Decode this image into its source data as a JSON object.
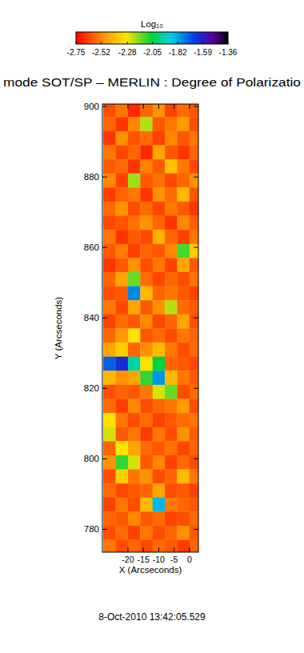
{
  "chart_data": {
    "type": "heatmap",
    "title": "mode SOT/SP – MERLIN : Degree of Polarizatio",
    "subtitle": "8-Oct-2010 13:42:05.529",
    "x_label": "X (Arcseconds)",
    "y_label": "Y (Arcseconds)",
    "x": [
      -26,
      -22,
      -18,
      -14,
      -10,
      -6,
      -2,
      2
    ],
    "y": [
      899,
      895,
      891,
      887,
      883,
      879,
      875,
      871,
      867,
      863,
      859,
      855,
      851,
      847,
      843,
      839,
      835,
      831,
      827,
      823,
      819,
      815,
      811,
      807,
      803,
      799,
      795,
      791,
      787,
      783,
      779,
      775
    ],
    "z": [
      [
        -2.62,
        -2.55,
        -2.68,
        -2.58,
        -2.5,
        -2.64,
        -2.57,
        -2.6
      ],
      [
        -2.58,
        -2.66,
        -2.52,
        -2.22,
        -2.6,
        -2.55,
        -2.48,
        -2.62
      ],
      [
        -2.66,
        -2.5,
        -2.61,
        -2.57,
        -2.64,
        -2.52,
        -2.6,
        -2.55
      ],
      [
        -2.55,
        -2.63,
        -2.58,
        -2.68,
        -2.45,
        -2.6,
        -2.66,
        -2.58
      ],
      [
        -2.6,
        -2.57,
        -2.66,
        -2.53,
        -2.6,
        -2.38,
        -2.55,
        -2.63
      ],
      [
        -2.52,
        -2.64,
        -2.2,
        -2.6,
        -2.56,
        -2.63,
        -2.58,
        -2.5
      ],
      [
        -2.65,
        -2.58,
        -2.55,
        -2.66,
        -2.5,
        -2.57,
        -2.4,
        -2.61
      ],
      [
        -2.57,
        -2.5,
        -2.62,
        -2.57,
        -2.63,
        -2.55,
        -2.6,
        -2.66
      ],
      [
        -2.63,
        -2.61,
        -2.56,
        -2.5,
        -2.58,
        -2.66,
        -2.52,
        -2.59
      ],
      [
        -2.55,
        -2.66,
        -2.6,
        -2.63,
        -2.42,
        -2.58,
        -2.64,
        -2.55
      ],
      [
        -2.6,
        -2.54,
        -2.64,
        -2.58,
        -2.6,
        -2.52,
        -2.12,
        -2.35
      ],
      [
        -2.66,
        -2.6,
        -2.5,
        -2.62,
        -2.55,
        -2.64,
        -2.45,
        -2.6
      ],
      [
        -2.58,
        -2.45,
        -2.15,
        -2.57,
        -2.63,
        -2.58,
        -2.62,
        -2.55
      ],
      [
        -2.62,
        -2.6,
        -1.78,
        -2.4,
        -2.58,
        -2.55,
        -2.6,
        -2.64
      ],
      [
        -2.55,
        -2.63,
        -2.45,
        -2.6,
        -2.5,
        -2.22,
        -2.57,
        -2.6
      ],
      [
        -2.64,
        -2.57,
        -2.6,
        -2.52,
        -2.63,
        -2.58,
        -2.45,
        -2.62
      ],
      [
        -2.58,
        -2.48,
        -2.3,
        -2.6,
        -2.57,
        -2.62,
        -2.55,
        -2.58
      ],
      [
        -2.45,
        -2.35,
        -2.58,
        -2.5,
        -2.4,
        -2.55,
        -2.62,
        -2.57
      ],
      [
        -1.72,
        -1.62,
        -1.95,
        -2.3,
        -2.05,
        -2.58,
        -2.6,
        -2.63
      ],
      [
        -2.4,
        -2.5,
        -2.45,
        -2.1,
        -1.8,
        -2.4,
        -2.55,
        -2.6
      ],
      [
        -2.62,
        -2.58,
        -2.6,
        -2.55,
        -2.25,
        -2.15,
        -2.62,
        -2.57
      ],
      [
        -2.57,
        -2.64,
        -2.52,
        -2.62,
        -2.58,
        -2.55,
        -2.48,
        -2.62
      ],
      [
        -2.3,
        -2.55,
        -2.62,
        -2.57,
        -2.64,
        -2.6,
        -2.57,
        -2.55
      ],
      [
        -2.25,
        -2.6,
        -2.55,
        -2.65,
        -2.55,
        -2.62,
        -2.5,
        -2.6
      ],
      [
        -2.58,
        -2.3,
        -2.45,
        -2.57,
        -2.6,
        -2.56,
        -2.63,
        -2.58
      ],
      [
        -2.5,
        -2.1,
        -2.25,
        -2.6,
        -2.52,
        -2.64,
        -2.57,
        -2.62
      ],
      [
        -2.62,
        -2.35,
        -2.55,
        -2.5,
        -2.62,
        -2.58,
        -2.4,
        -2.55
      ],
      [
        -2.57,
        -2.63,
        -2.6,
        -2.58,
        -2.45,
        -2.62,
        -2.6,
        -2.64
      ],
      [
        -2.64,
        -2.55,
        -2.62,
        -2.4,
        -1.85,
        -2.55,
        -2.58,
        -2.6
      ],
      [
        -2.58,
        -2.6,
        -2.52,
        -2.6,
        -2.57,
        -2.64,
        -2.62,
        -2.57
      ],
      [
        -2.62,
        -2.57,
        -2.64,
        -2.55,
        -2.62,
        -2.58,
        -2.5,
        -2.6
      ],
      [
        -2.55,
        -2.62,
        -2.58,
        -2.63,
        -2.57,
        -2.6,
        -2.65,
        -2.58
      ]
    ],
    "xlim": [
      -28.3,
      2.9
    ],
    "ylim": [
      773.5,
      900.7
    ],
    "xticks": [
      -20,
      -15,
      -10,
      -5,
      0
    ],
    "yticks": [
      780,
      800,
      820,
      840,
      860,
      880,
      900
    ],
    "colorbar": {
      "label": "Log₁₀",
      "range": [
        -2.75,
        -1.36
      ],
      "ticks": [
        -2.75,
        -2.52,
        -2.28,
        -2.05,
        -1.82,
        -1.59,
        -1.36
      ]
    }
  }
}
